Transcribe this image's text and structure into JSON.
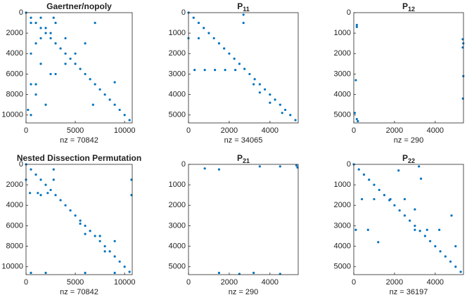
{
  "chart_data": [
    {
      "type": "spy",
      "title": "Gaertner/nopoly",
      "xlabel": "nz = 70842",
      "color": "#0072bd",
      "xlim": [
        0,
        10774
      ],
      "ylim": [
        0,
        10774
      ],
      "xticks": [
        0,
        5000,
        10000
      ],
      "yticks": [
        0,
        2000,
        4000,
        6000,
        8000,
        10000
      ],
      "x": [
        0,
        500,
        1000,
        1500,
        2000,
        2500,
        3000,
        3500,
        4000,
        4500,
        5000,
        5500,
        6000,
        6500,
        7000,
        7500,
        8000,
        8500,
        9000,
        9500,
        10000,
        10500,
        500,
        1500,
        2500,
        1000,
        3000,
        4000,
        500,
        1500,
        2500,
        500,
        1000,
        2000,
        500,
        9000,
        6800,
        5000,
        4000,
        6000,
        3000,
        7000,
        1000,
        2000,
        200,
        2800,
        1500
      ],
      "y": [
        0,
        500,
        1000,
        1500,
        2000,
        2500,
        3000,
        3500,
        4000,
        4500,
        5000,
        5500,
        6000,
        6500,
        7000,
        7500,
        8000,
        8500,
        9000,
        9500,
        10000,
        10500,
        1000,
        500,
        2000,
        3000,
        1000,
        2500,
        4000,
        5000,
        6000,
        7000,
        8000,
        9000,
        10000,
        6800,
        9000,
        4000,
        5000,
        3000,
        6000,
        1000,
        7000,
        1500,
        9500,
        500,
        2500
      ]
    },
    {
      "type": "spy",
      "title_main": "P",
      "title_sub": "11",
      "xlabel": "nz = 34065",
      "color": "#0072bd",
      "xlim": [
        0,
        5387
      ],
      "ylim": [
        0,
        5387
      ],
      "xticks": [
        0,
        2000,
        4000
      ],
      "yticks": [
        0,
        1000,
        2000,
        3000,
        4000,
        5000
      ],
      "x": [
        0,
        250,
        500,
        750,
        1000,
        1250,
        1500,
        1750,
        2000,
        2250,
        2500,
        2750,
        3000,
        3250,
        3500,
        3750,
        4000,
        4250,
        4500,
        4750,
        5000,
        5250,
        300,
        800,
        1300,
        1800,
        2300,
        2700,
        2700,
        0,
        500,
        3200,
        3500,
        4000,
        4600
      ],
      "y": [
        0,
        250,
        500,
        750,
        1000,
        1250,
        1500,
        1750,
        2000,
        2250,
        2500,
        2750,
        3000,
        3250,
        3500,
        3750,
        4000,
        4250,
        4500,
        4750,
        5000,
        5250,
        2800,
        2800,
        2800,
        2800,
        2800,
        100,
        500,
        1250,
        1250,
        3500,
        3900,
        4400,
        4900
      ]
    },
    {
      "type": "spy",
      "title_main": "P",
      "title_sub": "12",
      "xlabel": "nz = 290",
      "color": "#0072bd",
      "xlim": [
        0,
        5387
      ],
      "ylim": [
        0,
        5387
      ],
      "xticks": [
        0,
        2000,
        4000
      ],
      "yticks": [
        0,
        1000,
        2000,
        3000,
        4000,
        5000
      ],
      "x": [
        150,
        150,
        100,
        50,
        150,
        200,
        5350,
        5380,
        5350,
        5380,
        5360
      ],
      "y": [
        600,
        700,
        3300,
        4900,
        5200,
        5300,
        1300,
        1500,
        1700,
        3100,
        4200
      ]
    },
    {
      "type": "spy",
      "title": "Nested Dissection Permutation",
      "xlabel": "nz = 70842",
      "color": "#0072bd",
      "xlim": [
        0,
        10774
      ],
      "ylim": [
        0,
        10774
      ],
      "xticks": [
        0,
        5000,
        10000
      ],
      "yticks": [
        0,
        2000,
        4000,
        6000,
        8000,
        10000
      ],
      "x": [
        0,
        500,
        1000,
        1500,
        2000,
        2500,
        3000,
        3500,
        4000,
        4500,
        5000,
        5500,
        6000,
        6500,
        7000,
        7500,
        8000,
        8500,
        9000,
        9500,
        10000,
        10500,
        0,
        400,
        1200,
        2200,
        2800,
        2800,
        1500,
        5500,
        6000,
        8000,
        9000,
        10700,
        10700,
        500,
        2000,
        6000,
        9000,
        7500
      ],
      "y": [
        0,
        500,
        1000,
        1500,
        2000,
        2500,
        3000,
        3500,
        4000,
        4500,
        5000,
        5500,
        6000,
        6500,
        7000,
        7500,
        8000,
        8500,
        9000,
        9500,
        10000,
        10500,
        1500,
        2800,
        2800,
        2800,
        500,
        1500,
        3000,
        5800,
        6800,
        8500,
        7500,
        1500,
        3000,
        10600,
        10600,
        10600,
        10600,
        7000
      ]
    },
    {
      "type": "spy",
      "title_main": "P",
      "title_sub": "21",
      "xlabel": "nz = 290",
      "color": "#0072bd",
      "xlim": [
        0,
        5387
      ],
      "ylim": [
        0,
        5387
      ],
      "xticks": [
        0,
        2000,
        4000
      ],
      "yticks": [
        0,
        1000,
        2000,
        3000,
        4000,
        5000
      ],
      "x": [
        800,
        1500,
        3500,
        4500,
        5300,
        5350,
        1500,
        2500,
        3200,
        4500
      ],
      "y": [
        200,
        250,
        100,
        100,
        50,
        150,
        5300,
        5350,
        5300,
        5350
      ]
    },
    {
      "type": "spy",
      "title_main": "P",
      "title_sub": "22",
      "xlabel": "nz = 36197",
      "color": "#0072bd",
      "xlim": [
        0,
        5387
      ],
      "ylim": [
        0,
        5387
      ],
      "xticks": [
        0,
        2000,
        4000
      ],
      "yticks": [
        0,
        1000,
        2000,
        3000,
        4000,
        5000
      ],
      "x": [
        0,
        250,
        500,
        750,
        1000,
        1250,
        1500,
        1750,
        2000,
        2250,
        2500,
        2750,
        3000,
        3250,
        3500,
        3750,
        4000,
        4250,
        4500,
        4750,
        5000,
        5250,
        400,
        1000,
        1800,
        2500,
        3000,
        3000,
        3600,
        4200,
        3200,
        3300,
        4800,
        5000,
        100,
        700,
        1200,
        2200
      ],
      "y": [
        0,
        250,
        500,
        750,
        1000,
        1250,
        1500,
        1750,
        2000,
        2250,
        2500,
        2750,
        3000,
        3250,
        3500,
        3750,
        4000,
        4250,
        4500,
        4750,
        5000,
        5250,
        1700,
        1700,
        1700,
        1700,
        2200,
        3200,
        3200,
        3200,
        100,
        700,
        2500,
        4000,
        3200,
        3200,
        3800,
        300
      ]
    }
  ]
}
